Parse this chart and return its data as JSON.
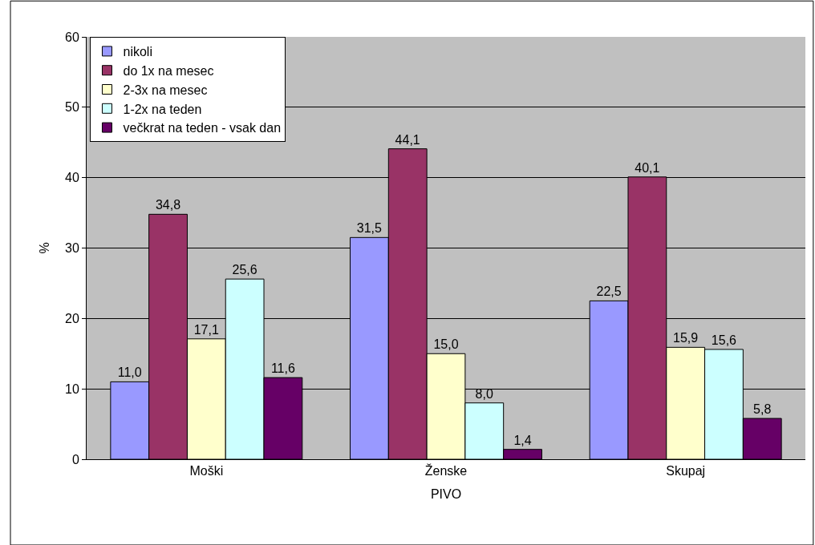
{
  "chart_data": {
    "type": "bar",
    "xlabel": "PIVO",
    "ylabel": "%",
    "categories": [
      "Moški",
      "Ženske",
      "Skupaj"
    ],
    "series": [
      {
        "name": "nikoli",
        "color": "#9999ff",
        "values": [
          11.0,
          31.5,
          22.5
        ],
        "value_labels": [
          "11,0",
          "31,5",
          "22,5"
        ]
      },
      {
        "name": "do 1x na mesec",
        "color": "#993366",
        "values": [
          34.8,
          44.1,
          40.1
        ],
        "value_labels": [
          "34,8",
          "44,1",
          "40,1"
        ]
      },
      {
        "name": "2-3x na mesec",
        "color": "#ffffcc",
        "values": [
          17.1,
          15.0,
          15.9
        ],
        "value_labels": [
          "17,1",
          "15,0",
          "15,9"
        ]
      },
      {
        "name": "1-2x na teden",
        "color": "#ccffff",
        "values": [
          25.6,
          8.0,
          15.6
        ],
        "value_labels": [
          "25,6",
          "8,0",
          "15,6"
        ]
      },
      {
        "name": "večkrat na teden - vsak dan",
        "color": "#660066",
        "values": [
          11.6,
          1.4,
          5.8
        ],
        "value_labels": [
          "11,6",
          "1,4",
          "5,8"
        ]
      }
    ],
    "ylim": [
      0,
      60
    ],
    "yticks": [
      0,
      10,
      20,
      30,
      40,
      50,
      60
    ],
    "grid": "y",
    "legend": "top left"
  }
}
